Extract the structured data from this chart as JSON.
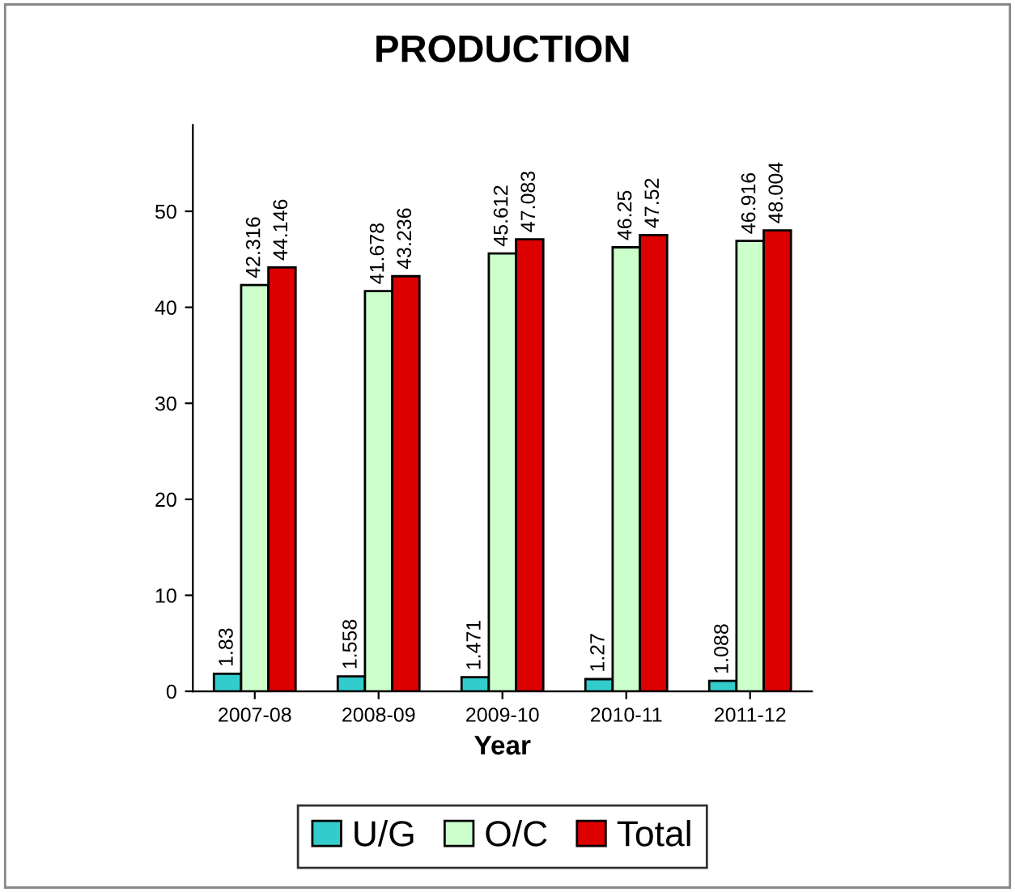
{
  "chart_data": {
    "type": "bar",
    "title": "PRODUCTION",
    "xlabel": "Year",
    "categories": [
      "2007-08",
      "2008-09",
      "2009-10",
      "2010-11",
      "2011-12"
    ],
    "series": [
      {
        "name": "U/G",
        "color": "#33cccc",
        "values": [
          1.83,
          1.558,
          1.471,
          1.27,
          1.088
        ]
      },
      {
        "name": "O/C",
        "color": "#ccffcc",
        "values": [
          42.316,
          41.678,
          45.612,
          46.25,
          46.916
        ]
      },
      {
        "name": "Total",
        "color": "#dd0000",
        "values": [
          44.146,
          43.236,
          47.083,
          47.52,
          48.004
        ]
      }
    ],
    "ylim": [
      0,
      59
    ],
    "yticks": [
      0,
      10,
      20,
      30,
      40,
      50
    ],
    "grid": false,
    "legend": "bottom",
    "data_labels": true
  }
}
